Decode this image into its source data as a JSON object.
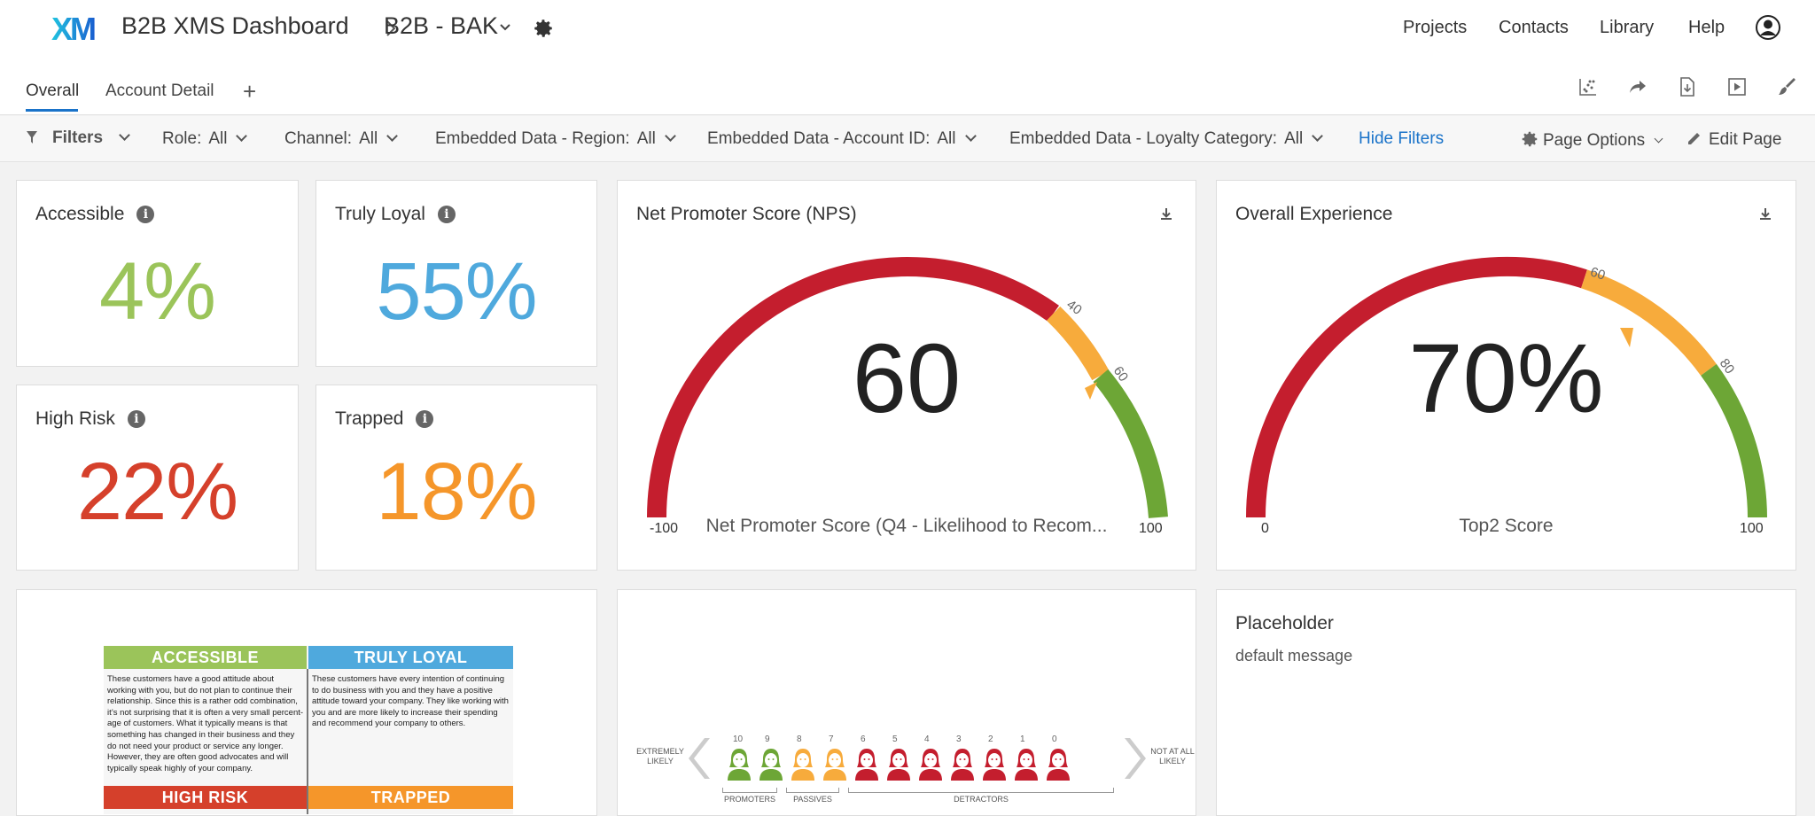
{
  "header": {
    "logo_text": "XM",
    "dashboard_name": "B2B XMS Dashboard",
    "project_name": "B2B - BAK",
    "nav": [
      "Projects",
      "Contacts",
      "Library",
      "Help"
    ]
  },
  "tabs": [
    {
      "label": "Overall",
      "active": true
    },
    {
      "label": "Account Detail",
      "active": false
    }
  ],
  "filters": {
    "label": "Filters",
    "items": [
      {
        "name": "Role:",
        "value": "All"
      },
      {
        "name": "Channel:",
        "value": "All"
      },
      {
        "name": "Embedded Data - Region:",
        "value": "All"
      },
      {
        "name": "Embedded Data - Account ID:",
        "value": "All"
      },
      {
        "name": "Embedded Data - Loyalty Category:",
        "value": "All"
      }
    ],
    "hide_label": "Hide Filters",
    "page_options": "Page Options",
    "edit_page": "Edit Page"
  },
  "metrics": [
    {
      "title": "Accessible",
      "value": "4%",
      "color": "#9bc45a"
    },
    {
      "title": "Truly Loyal",
      "value": "55%",
      "color": "#4fa9dd"
    },
    {
      "title": "High Risk",
      "value": "22%",
      "color": "#d5402b"
    },
    {
      "title": "Trapped",
      "value": "18%",
      "color": "#f5962a"
    }
  ],
  "nps": {
    "title": "Net Promoter Score (NPS)",
    "value": "60",
    "label": "Net Promoter Score (Q4 - Likelihood to Recom...",
    "min": "-100",
    "max": "100",
    "tick_labels": [
      "40",
      "60"
    ],
    "numeric_value": 60
  },
  "overall_experience": {
    "title": "Overall Experience",
    "value": "70%",
    "label": "Top2 Score",
    "min": "0",
    "max": "100",
    "tick_labels": [
      "60",
      "80"
    ],
    "numeric_value": 70
  },
  "placeholder": {
    "title": "Placeholder",
    "message": "default message"
  },
  "segments": {
    "accessible": {
      "title": "ACCESSIBLE",
      "text": "These customers have a good attitude about working with you, but do not plan to continue their relationship. Since this is a rather odd combination, it’s not surprising that it is often a very small percent-age of customers. What it typically means is that something has changed in their business and they do not need your product or service any longer. However, they are often good advocates and will typically speak highly of your company."
    },
    "truly_loyal": {
      "title": "TRULY LOYAL",
      "text": "These customers have every intention of continuing to do business with you and they have a positive attitude toward your company. They like working with you and are more likely to increase their spending and recommend your company to others."
    },
    "high_risk": {
      "title": "HIGH RISK"
    },
    "trapped": {
      "title": "TRAPPED"
    }
  },
  "nps_scale": {
    "left_label": "EXTREMELY LIKELY",
    "right_label": "NOT AT ALL LIKELY",
    "numbers": [
      "10",
      "9",
      "8",
      "7",
      "6",
      "5",
      "4",
      "3",
      "2",
      "1",
      "0"
    ],
    "groups": [
      "PROMOTERS",
      "PASSIVES",
      "DETRACTORS"
    ]
  },
  "colors": {
    "red": "#c41e2e",
    "orange": "#f7ab3c",
    "green": "#6da636",
    "accent": "#1a73c9"
  }
}
